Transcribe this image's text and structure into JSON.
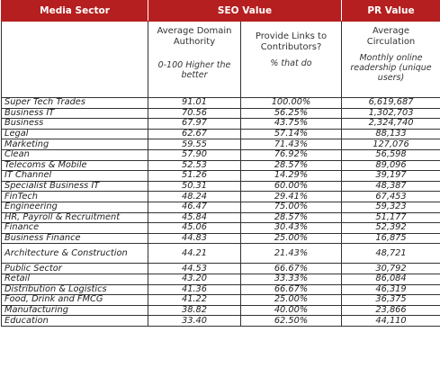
{
  "headers": {
    "media_sector": "Media Sector",
    "seo_value": "SEO Value",
    "pr_value": "PR Value"
  },
  "subheaders": {
    "domain_authority": {
      "title": "Average Domain Authority",
      "note": "0-100 Higher the better"
    },
    "links": {
      "title": "Provide Links to Contributors?",
      "note": "% that do"
    },
    "circulation": {
      "title": "Average Circulation",
      "note": "Monthly online readership (unique users)"
    }
  },
  "rows": [
    {
      "sector": "Super Tech Trades",
      "da": "91.01",
      "links": "100.00%",
      "circ": "6,619,687"
    },
    {
      "sector": "Business IT",
      "da": "70.56",
      "links": "56.25%",
      "circ": "1,302,703"
    },
    {
      "sector": "Business",
      "da": "67.97",
      "links": "43.75%",
      "circ": "2,324,740"
    },
    {
      "sector": "Legal",
      "da": "62.67",
      "links": "57.14%",
      "circ": "88,133"
    },
    {
      "sector": "Marketing",
      "da": "59.55",
      "links": "71.43%",
      "circ": "127,076"
    },
    {
      "sector": "Clean",
      "da": "57.90",
      "links": "76.92%",
      "circ": "56,598"
    },
    {
      "sector": "Telecoms & Mobile",
      "da": "52.53",
      "links": "28.57%",
      "circ": "89,096"
    },
    {
      "sector": "IT Channel",
      "da": "51.26",
      "links": "14.29%",
      "circ": "39,197"
    },
    {
      "sector": "Specialist Business IT",
      "da": "50.31",
      "links": "60.00%",
      "circ": "48,387"
    },
    {
      "sector": "FinTech",
      "da": "48.24",
      "links": "29.41%",
      "circ": "67,453"
    },
    {
      "sector": "Engineering",
      "da": "46.47",
      "links": "75.00%",
      "circ": "59,323"
    },
    {
      "sector": "HR, Payroll & Recruitment",
      "da": "45.84",
      "links": "28.57%",
      "circ": "51,177"
    },
    {
      "sector": "Finance",
      "da": "45.06",
      "links": "30.43%",
      "circ": "52,392"
    },
    {
      "sector": "Business Finance",
      "da": "44.83",
      "links": "25.00%",
      "circ": "16,875"
    },
    {
      "sector": "Architecture & Construction",
      "da": "44.21",
      "links": "21.43%",
      "circ": "48,721"
    },
    {
      "sector": "Public Sector",
      "da": "44.53",
      "links": "66.67%",
      "circ": "30,792"
    },
    {
      "sector": "Retail",
      "da": "43.20",
      "links": "33.33%",
      "circ": "86,084"
    },
    {
      "sector": "Distribution & Logistics",
      "da": "41.36",
      "links": "66.67%",
      "circ": "46,319"
    },
    {
      "sector": "Food, Drink and FMCG",
      "da": "41.22",
      "links": "25.00%",
      "circ": "36,375"
    },
    {
      "sector": "Manufacturing",
      "da": "38.82",
      "links": "40.00%",
      "circ": "23,866"
    },
    {
      "sector": "Education",
      "da": "33.40",
      "links": "62.50%",
      "circ": "44,110"
    }
  ]
}
